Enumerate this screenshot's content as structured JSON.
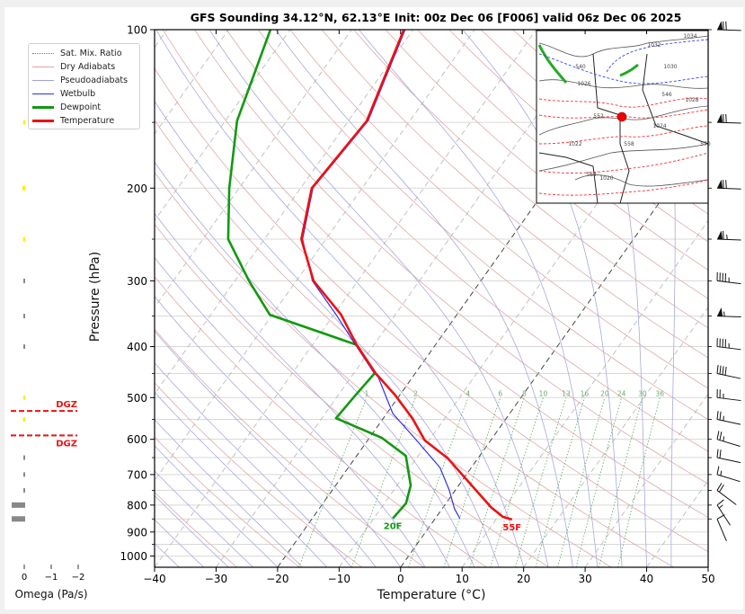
{
  "chart_data": {
    "type": "line",
    "title": "GFS Sounding 34.12°N, 62.13°E Init: 00z Dec 06 [F006] valid 06z Dec 06 2025",
    "xlabel": "Temperature (°C)",
    "ylabel": "Pressure (hPa)",
    "xlim": [
      -40,
      50
    ],
    "ylim": [
      1050,
      100
    ],
    "x_ticks": [
      "−40",
      "−30",
      "−20",
      "−10",
      "0",
      "10",
      "20",
      "30",
      "40",
      "50"
    ],
    "x_tick_values": [
      -40,
      -30,
      -20,
      -10,
      0,
      10,
      20,
      30,
      40,
      50
    ],
    "y_ticks": [
      "100",
      "200",
      "300",
      "400",
      "500",
      "600",
      "700",
      "800",
      "900",
      "1000"
    ],
    "y_tick_values": [
      100,
      200,
      300,
      400,
      500,
      600,
      700,
      800,
      900,
      1000
    ],
    "y_minor_ticks": [
      150,
      250,
      350,
      450,
      550,
      650,
      750,
      850,
      950
    ],
    "skew": "skew-T log-p",
    "legend": {
      "placement": "upper-left",
      "entries": [
        {
          "label": "Sat. Mix. Ratio",
          "color": "#3a9a3a",
          "style": "dotted"
        },
        {
          "label": "Dry Adiabats",
          "color": "#e8a0a0",
          "style": "solid"
        },
        {
          "label": "Pseudoadiabats",
          "color": "#a0a0dd",
          "style": "solid"
        },
        {
          "label": "Wetbulb",
          "color": "#3030ee",
          "style": "solid"
        },
        {
          "label": "Dewpoint",
          "color": "#119911",
          "style": "solid-thick"
        },
        {
          "label": "Temperature",
          "color": "#ee1111",
          "style": "solid-thick"
        }
      ]
    },
    "series": [
      {
        "name": "Temperature",
        "color": "#ee1111",
        "p": [
          100,
          149,
          200,
          250,
          300,
          348,
          397,
          449,
          495,
          547,
          603,
          652,
          734,
          809,
          842,
          852
        ],
        "t": [
          -61.5,
          -57.0,
          -58.2,
          -54.0,
          -47.2,
          -38.8,
          -32.8,
          -26.5,
          -20.7,
          -15.3,
          -10.7,
          -4.9,
          2.1,
          7.9,
          10.8,
          12.6
        ]
      },
      {
        "name": "Dewpoint",
        "color": "#119911",
        "p": [
          100,
          149,
          200,
          250,
          300,
          348,
          397,
          449,
          495,
          547,
          596,
          645,
          734,
          794,
          848
        ],
        "t": [
          -83.2,
          -78.1,
          -71.6,
          -65.9,
          -57.7,
          -50.4,
          -32.8,
          -26.6,
          -27.2,
          -27.7,
          -18.0,
          -12.0,
          -7.8,
          -6.5,
          -6.9
        ]
      },
      {
        "name": "Wetbulb",
        "color": "#3030ee",
        "p": [
          100,
          149,
          200,
          250,
          300,
          348,
          397,
          449,
          458,
          536,
          596,
          679,
          749,
          813,
          848
        ],
        "t": [
          -61.3,
          -56.8,
          -58.0,
          -53.8,
          -47.4,
          -39.6,
          -33.0,
          -26.7,
          -25.5,
          -19.0,
          -12.7,
          -5.1,
          -1.0,
          2.0,
          4.0
        ]
      }
    ],
    "surface_labels": {
      "dewpoint": "20F",
      "temperature": "55F"
    },
    "mixing_ratio_labels": [
      "1",
      "2",
      "4",
      "6",
      "8",
      "10",
      "13",
      "16",
      "20",
      "24",
      "30",
      "36"
    ],
    "mixing_ratio_values": [
      1,
      2,
      4,
      6,
      8,
      10,
      13,
      16,
      20,
      24,
      30,
      36
    ],
    "wind_barbs": {
      "p": [
        100,
        150,
        200,
        250,
        300,
        350,
        400,
        450,
        500,
        550,
        600,
        650,
        700,
        750,
        800,
        850
      ],
      "speed_kt": [
        70,
        70,
        70,
        65,
        45,
        55,
        45,
        40,
        25,
        25,
        25,
        20,
        15,
        20,
        15,
        10
      ],
      "dir_deg": [
        255,
        255,
        255,
        255,
        250,
        255,
        250,
        245,
        250,
        245,
        240,
        245,
        240,
        220,
        200,
        190
      ]
    },
    "omega_panel": {
      "xlabel": "Omega (Pa/s)",
      "x_ticks": [
        "0",
        "−1",
        "−2"
      ],
      "x_tick_values": [
        0,
        -1,
        -2
      ],
      "dgz_label": "DGZ",
      "dgz_bounds_hpa": [
        530,
        590
      ],
      "levels_hpa": [
        150,
        200,
        250,
        300,
        350,
        400,
        500,
        550,
        650,
        700,
        750,
        800,
        850
      ],
      "omega": [
        0.02,
        0.05,
        0.04,
        0.02,
        0.02,
        0.03,
        0.03,
        0.04,
        0.03,
        0.02,
        0.02,
        0.25,
        0.25
      ],
      "bar_colors": [
        "#ffee00",
        "#ffee00",
        "#ffee00",
        "#888888",
        "#888888",
        "#888888",
        "#ffee00",
        "#ffee00",
        "#888888",
        "#888888",
        "#888888",
        "#888888",
        "#888888"
      ]
    },
    "inset_map": {
      "contour_labels": [
        "1032",
        "1034",
        "1026",
        "1030",
        "540",
        "546",
        "552",
        "558",
        "564",
        "570",
        "1024",
        "1022",
        "1020",
        "1028"
      ],
      "marker_color": "#ee0000"
    }
  }
}
